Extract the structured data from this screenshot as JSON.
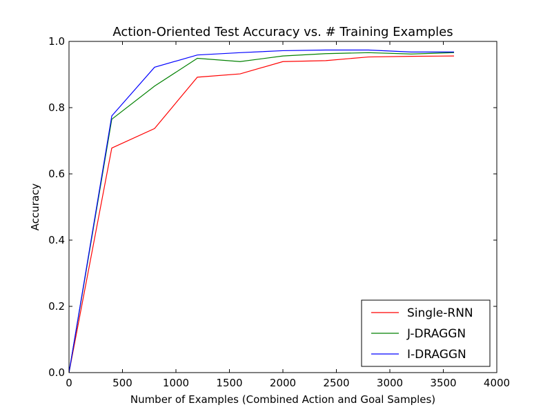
{
  "chart_data": {
    "type": "line",
    "title": "Action-Oriented Test Accuracy vs. # Training Examples",
    "xlabel": "Number of Examples (Combined Action and Goal Samples)",
    "ylabel": "Accuracy",
    "xlim": [
      0,
      4000
    ],
    "ylim": [
      0.0,
      1.0
    ],
    "xticks": [
      0,
      500,
      1000,
      1500,
      2000,
      2500,
      3000,
      3500,
      4000
    ],
    "xtick_labels": [
      "0",
      "500",
      "1000",
      "1500",
      "2000",
      "2500",
      "3000",
      "3500",
      "4000"
    ],
    "yticks": [
      0.0,
      0.2,
      0.4,
      0.6,
      0.8,
      1.0
    ],
    "ytick_labels": [
      "0.0",
      "0.2",
      "0.4",
      "0.6",
      "0.8",
      "1.0"
    ],
    "grid": false,
    "legend_position": "lower-right",
    "x": [
      0,
      400,
      800,
      1200,
      1600,
      2000,
      2400,
      2800,
      3200,
      3600
    ],
    "series": [
      {
        "name": "Single-RNN",
        "color": "#ff0000",
        "values": [
          0.0,
          0.678,
          0.737,
          0.892,
          0.902,
          0.939,
          0.942,
          0.953,
          0.955,
          0.956
        ]
      },
      {
        "name": "J-DRAGGN",
        "color": "#008000",
        "values": [
          0.0,
          0.765,
          0.865,
          0.949,
          0.939,
          0.956,
          0.963,
          0.966,
          0.962,
          0.966
        ]
      },
      {
        "name": "I-DRAGGN",
        "color": "#0000ff",
        "values": [
          0.0,
          0.775,
          0.922,
          0.959,
          0.966,
          0.972,
          0.974,
          0.974,
          0.968,
          0.968
        ]
      }
    ]
  }
}
